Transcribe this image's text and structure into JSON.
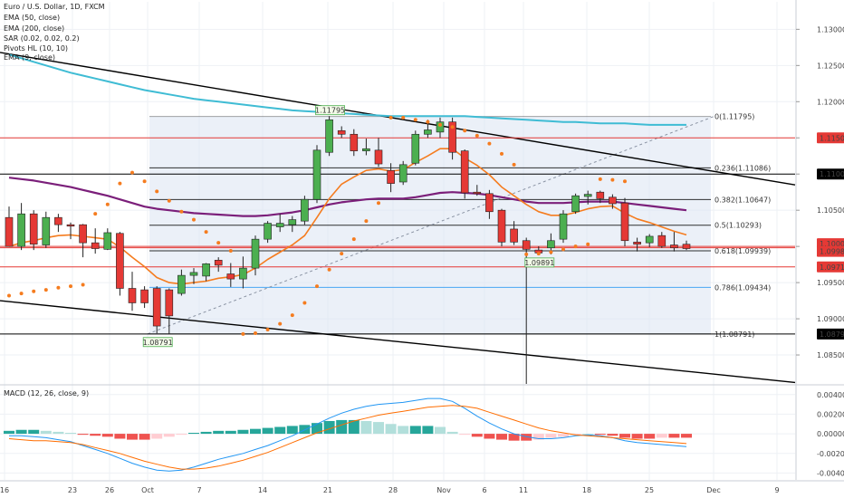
{
  "chart_data": [
    {
      "type": "candlestick",
      "symbol_title": "Euro / U.S. Dollar, 1D, FXCM",
      "indicators": [
        "EMA (50, close)",
        "EMA (200, close)",
        "SAR (0.02, 0.02, 0.2)",
        "Pivots HL (10, 10)",
        "EMA (9, close)"
      ],
      "y_axis": {
        "ticks": [
          "1.13000",
          "1.12500",
          "1.12000",
          "1.11500",
          "1.11000",
          "1.10500",
          "1.10000",
          "1.09500",
          "1.09000",
          "1.08500"
        ],
        "tick_values": [
          1.13,
          1.125,
          1.12,
          1.115,
          1.11,
          1.105,
          1.1,
          1.095,
          1.09,
          1.085
        ],
        "range": [
          1.081,
          1.1338
        ]
      },
      "x_axis": {
        "labels": [
          "16",
          "23",
          "26",
          "Oct",
          "7",
          "14",
          "21",
          "28",
          "Nov",
          "6",
          "11",
          "18",
          "25",
          "Dec",
          "9"
        ]
      },
      "candles": [
        {
          "o": 1.104,
          "h": 1.1055,
          "l": 1.1,
          "c": 1.1
        },
        {
          "o": 1.1,
          "h": 1.106,
          "l": 1.0995,
          "c": 1.1045
        },
        {
          "o": 1.1045,
          "h": 1.105,
          "l": 1.0995,
          "c": 1.1003
        },
        {
          "o": 1.1002,
          "h": 1.1048,
          "l": 1.0998,
          "c": 1.104
        },
        {
          "o": 1.104,
          "h": 1.1045,
          "l": 1.102,
          "c": 1.103
        },
        {
          "o": 1.103,
          "h": 1.1033,
          "l": 1.101,
          "c": 1.1028
        },
        {
          "o": 1.103,
          "h": 1.1031,
          "l": 1.0985,
          "c": 1.1005
        },
        {
          "o": 1.1005,
          "h": 1.1025,
          "l": 1.099,
          "c": 1.0997
        },
        {
          "o": 1.0996,
          "h": 1.1025,
          "l": 1.0995,
          "c": 1.1019
        },
        {
          "o": 1.1018,
          "h": 1.102,
          "l": 1.0932,
          "c": 1.0942
        },
        {
          "o": 1.0942,
          "h": 1.0965,
          "l": 1.0911,
          "c": 1.0922
        },
        {
          "o": 1.094,
          "h": 1.0945,
          "l": 1.0915,
          "c": 1.0922
        },
        {
          "o": 1.0942,
          "h": 1.0945,
          "l": 1.088,
          "c": 1.089
        },
        {
          "o": 1.094,
          "h": 1.0942,
          "l": 1.0879,
          "c": 1.0904
        },
        {
          "o": 1.0935,
          "h": 1.0968,
          "l": 1.0932,
          "c": 1.096
        },
        {
          "o": 1.096,
          "h": 1.097,
          "l": 1.0948,
          "c": 1.0964
        },
        {
          "o": 1.0959,
          "h": 1.0977,
          "l": 1.0952,
          "c": 1.0976
        },
        {
          "o": 1.0981,
          "h": 1.0985,
          "l": 1.0965,
          "c": 1.0974
        },
        {
          "o": 1.0962,
          "h": 1.0977,
          "l": 1.0944,
          "c": 1.0955
        },
        {
          "o": 1.0955,
          "h": 1.0986,
          "l": 1.0942,
          "c": 1.097
        },
        {
          "o": 1.097,
          "h": 1.1015,
          "l": 1.096,
          "c": 1.101
        },
        {
          "o": 1.101,
          "h": 1.1035,
          "l": 1.1005,
          "c": 1.1032
        },
        {
          "o": 1.1027,
          "h": 1.1045,
          "l": 1.102,
          "c": 1.1032
        },
        {
          "o": 1.103,
          "h": 1.1042,
          "l": 1.102,
          "c": 1.1037
        },
        {
          "o": 1.1035,
          "h": 1.107,
          "l": 1.103,
          "c": 1.1065
        },
        {
          "o": 1.1065,
          "h": 1.114,
          "l": 1.106,
          "c": 1.1133
        },
        {
          "o": 1.113,
          "h": 1.118,
          "l": 1.1125,
          "c": 1.1175
        },
        {
          "o": 1.116,
          "h": 1.1166,
          "l": 1.115,
          "c": 1.1155
        },
        {
          "o": 1.1155,
          "h": 1.1162,
          "l": 1.1125,
          "c": 1.1132
        },
        {
          "o": 1.1132,
          "h": 1.1149,
          "l": 1.1126,
          "c": 1.1135
        },
        {
          "o": 1.1133,
          "h": 1.115,
          "l": 1.111,
          "c": 1.1114
        },
        {
          "o": 1.1105,
          "h": 1.1115,
          "l": 1.1075,
          "c": 1.1087
        },
        {
          "o": 1.1089,
          "h": 1.1118,
          "l": 1.1085,
          "c": 1.1113
        },
        {
          "o": 1.1115,
          "h": 1.116,
          "l": 1.1112,
          "c": 1.1155
        },
        {
          "o": 1.1155,
          "h": 1.1175,
          "l": 1.115,
          "c": 1.1161
        },
        {
          "o": 1.1158,
          "h": 1.1178,
          "l": 1.115,
          "c": 1.1172
        },
        {
          "o": 1.1172,
          "h": 1.1178,
          "l": 1.112,
          "c": 1.113
        },
        {
          "o": 1.1132,
          "h": 1.1134,
          "l": 1.1066,
          "c": 1.1074
        },
        {
          "o": 1.1075,
          "h": 1.1085,
          "l": 1.107,
          "c": 1.1073
        },
        {
          "o": 1.1073,
          "h": 1.1078,
          "l": 1.1038,
          "c": 1.1048
        },
        {
          "o": 1.105,
          "h": 1.1052,
          "l": 1.1,
          "c": 1.1006
        },
        {
          "o": 1.1024,
          "h": 1.1035,
          "l": 1.1002,
          "c": 1.1006
        },
        {
          "o": 1.1008,
          "h": 1.1012,
          "l": 0.9994,
          "c": 1.0996
        },
        {
          "o": 1.0995,
          "h": 1.1,
          "l": 1.0989,
          "c": 1.0991
        },
        {
          "o": 1.0998,
          "h": 1.1018,
          "l": 1.0989,
          "c": 1.1008
        },
        {
          "o": 1.101,
          "h": 1.105,
          "l": 1.1005,
          "c": 1.1045
        },
        {
          "o": 1.1048,
          "h": 1.1073,
          "l": 1.1045,
          "c": 1.107
        },
        {
          "o": 1.1069,
          "h": 1.1077,
          "l": 1.1058,
          "c": 1.1072
        },
        {
          "o": 1.1075,
          "h": 1.1077,
          "l": 1.106,
          "c": 1.1066
        },
        {
          "o": 1.1068,
          "h": 1.1072,
          "l": 1.1052,
          "c": 1.1059
        },
        {
          "o": 1.106,
          "h": 1.1067,
          "l": 1.1,
          "c": 1.1008
        },
        {
          "o": 1.1006,
          "h": 1.1012,
          "l": 1.0993,
          "c": 1.1003
        },
        {
          "o": 1.1005,
          "h": 1.1017,
          "l": 1.0999,
          "c": 1.1014
        },
        {
          "o": 1.1015,
          "h": 1.102,
          "l": 1.0998,
          "c": 1.1
        },
        {
          "o": 1.1002,
          "h": 1.102,
          "l": 1.0993,
          "c": 1.0998
        },
        {
          "o": 1.1003,
          "h": 1.1008,
          "l": 1.0995,
          "c": 1.0997
        }
      ],
      "ema_9_orange": [
        1.1,
        1.1005,
        1.1008,
        1.1012,
        1.1015,
        1.1016,
        1.1014,
        1.1012,
        1.101,
        1.0999,
        1.0985,
        1.0972,
        1.0957,
        1.095,
        1.0948,
        1.095,
        1.0952,
        1.0956,
        1.0958,
        1.0961,
        1.097,
        1.0982,
        1.0992,
        1.1002,
        1.1015,
        1.104,
        1.1066,
        1.1086,
        1.1096,
        1.1105,
        1.1107,
        1.1104,
        1.1106,
        1.1116,
        1.1125,
        1.1135,
        1.1135,
        1.1122,
        1.1112,
        1.1099,
        1.1082,
        1.107,
        1.1058,
        1.1048,
        1.1043,
        1.1043,
        1.1047,
        1.1052,
        1.1055,
        1.1056,
        1.1046,
        1.1038,
        1.1033,
        1.1027,
        1.1021,
        1.1016
      ],
      "ema_50_purple": [
        1.1095,
        1.1093,
        1.1091,
        1.1088,
        1.1085,
        1.1082,
        1.1078,
        1.1074,
        1.107,
        1.1065,
        1.106,
        1.1055,
        1.1052,
        1.105,
        1.1048,
        1.1046,
        1.1045,
        1.1044,
        1.1043,
        1.1042,
        1.1042,
        1.1043,
        1.1045,
        1.1047,
        1.105,
        1.1054,
        1.1058,
        1.1061,
        1.1063,
        1.1065,
        1.1066,
        1.1066,
        1.1066,
        1.1068,
        1.1071,
        1.1074,
        1.1075,
        1.1074,
        1.1073,
        1.1071,
        1.1068,
        1.1065,
        1.1062,
        1.106,
        1.106,
        1.106,
        1.1061,
        1.1062,
        1.1062,
        1.1062,
        1.106,
        1.1058,
        1.1056,
        1.1054,
        1.1052,
        1.105
      ],
      "ema_200_cyan": [
        1.1265,
        1.126,
        1.1255,
        1.125,
        1.1245,
        1.124,
        1.1236,
        1.1232,
        1.1228,
        1.1224,
        1.122,
        1.1216,
        1.1213,
        1.121,
        1.1207,
        1.1204,
        1.1202,
        1.12,
        1.1198,
        1.1196,
        1.1194,
        1.1192,
        1.119,
        1.1188,
        1.1187,
        1.1186,
        1.1185,
        1.1184,
        1.1183,
        1.1182,
        1.1181,
        1.118,
        1.118,
        1.118,
        1.118,
        1.118,
        1.118,
        1.118,
        1.1179,
        1.1178,
        1.1177,
        1.1176,
        1.1175,
        1.1174,
        1.1173,
        1.1172,
        1.1172,
        1.1171,
        1.117,
        1.117,
        1.117,
        1.1169,
        1.1168,
        1.1168,
        1.1168,
        1.1168
      ],
      "sar_dots": [
        {
          "i": 0,
          "v": 1.0932
        },
        {
          "i": 1,
          "v": 1.0935
        },
        {
          "i": 2,
          "v": 1.0938
        },
        {
          "i": 3,
          "v": 1.094
        },
        {
          "i": 4,
          "v": 1.0943
        },
        {
          "i": 5,
          "v": 1.0945
        },
        {
          "i": 6,
          "v": 1.0947
        },
        {
          "i": 7,
          "v": 1.1045
        },
        {
          "i": 8,
          "v": 1.1058
        },
        {
          "i": 9,
          "v": 1.1087
        },
        {
          "i": 10,
          "v": 1.1102
        },
        {
          "i": 11,
          "v": 1.109
        },
        {
          "i": 12,
          "v": 1.1076
        },
        {
          "i": 13,
          "v": 1.1063
        },
        {
          "i": 14,
          "v": 1.1048
        },
        {
          "i": 15,
          "v": 1.1037
        },
        {
          "i": 16,
          "v": 1.102
        },
        {
          "i": 17,
          "v": 1.1005
        },
        {
          "i": 18,
          "v": 1.0994
        },
        {
          "i": 19,
          "v": 1.0879
        },
        {
          "i": 20,
          "v": 1.088
        },
        {
          "i": 21,
          "v": 1.0885
        },
        {
          "i": 22,
          "v": 1.0893
        },
        {
          "i": 23,
          "v": 1.0905
        },
        {
          "i": 24,
          "v": 1.0922
        },
        {
          "i": 25,
          "v": 1.0945
        },
        {
          "i": 26,
          "v": 1.0968
        },
        {
          "i": 27,
          "v": 1.099
        },
        {
          "i": 28,
          "v": 1.101
        },
        {
          "i": 29,
          "v": 1.1035
        },
        {
          "i": 30,
          "v": 1.106
        },
        {
          "i": 31,
          "v": 1.1178
        },
        {
          "i": 32,
          "v": 1.1178
        },
        {
          "i": 33,
          "v": 1.1175
        },
        {
          "i": 34,
          "v": 1.1172
        },
        {
          "i": 35,
          "v": 1.1168
        },
        {
          "i": 36,
          "v": 1.1165
        },
        {
          "i": 37,
          "v": 1.116
        },
        {
          "i": 38,
          "v": 1.1153
        },
        {
          "i": 39,
          "v": 1.1142
        },
        {
          "i": 40,
          "v": 1.1128
        },
        {
          "i": 41,
          "v": 1.1113
        },
        {
          "i": 42,
          "v": 1.0989
        },
        {
          "i": 43,
          "v": 1.099
        },
        {
          "i": 44,
          "v": 1.0992
        },
        {
          "i": 45,
          "v": 1.0996
        },
        {
          "i": 46,
          "v": 1.1
        },
        {
          "i": 47,
          "v": 1.1003
        },
        {
          "i": 48,
          "v": 1.1093
        },
        {
          "i": 49,
          "v": 1.1092
        },
        {
          "i": 50,
          "v": 1.109
        }
      ],
      "horizontal_levels": [
        {
          "value": 1.115,
          "label": "1.11500",
          "color": "#e53935"
        },
        {
          "value": 1.11,
          "label": "1.11000",
          "color": "#000000"
        },
        {
          "value": 1.1,
          "label": "1.10000",
          "color": "#e53935"
        },
        {
          "value": 1.09982,
          "label": "1.09982",
          "color": "#e53935"
        },
        {
          "value": 1.09717,
          "label": "1.09717",
          "color": "#e53935"
        },
        {
          "value": 1.0879,
          "label": "1.08790",
          "color": "#000000"
        }
      ],
      "fibonacci": [
        {
          "ratio": "0",
          "value": 1.11795,
          "label": "0(1.11795)"
        },
        {
          "ratio": "0.236",
          "value": 1.11086,
          "label": "0.236(1.11086)"
        },
        {
          "ratio": "0.382",
          "value": 1.10647,
          "label": "0.382(1.10647)"
        },
        {
          "ratio": "0.5",
          "value": 1.10293,
          "label": "0.5(1.10293)"
        },
        {
          "ratio": "0.618",
          "value": 1.09939,
          "label": "0.618(1.09939)"
        },
        {
          "ratio": "0.786",
          "value": 1.09434,
          "label": "0.786(1.09434)"
        },
        {
          "ratio": "1",
          "value": 1.08791,
          "label": "1(1.08791)"
        }
      ],
      "pivot_labels": [
        {
          "text": "1.11795",
          "i": 26,
          "value": 1.11795,
          "pos": "above"
        },
        {
          "text": "1.09891",
          "i": 43,
          "value": 1.09891,
          "pos": "below"
        },
        {
          "text": "1.08791",
          "i": 12,
          "value": 1.08791,
          "pos": "below"
        }
      ],
      "colors": {
        "up": "#4caf50",
        "down": "#e53935",
        "ema9": "#f57c1f",
        "ema50": "#7b1f7a",
        "ema200": "#3fbcd4",
        "sar": "#f57c1f",
        "fib": "#000000",
        "fib786": "#2196f3"
      }
    },
    {
      "type": "macd",
      "title": "MACD (12, 26, close, 9)",
      "y_axis": {
        "ticks": [
          "0.00400",
          "0.00200",
          "0.00000",
          "-0.00200",
          "-0.00400"
        ],
        "tick_values": [
          0.004,
          0.002,
          0.0,
          -0.002,
          -0.004
        ],
        "range": [
          -0.0047,
          0.0049
        ]
      },
      "histogram": [
        0.0003,
        0.0004,
        0.0004,
        0.0003,
        0.0002,
        0.0001,
        -0.0001,
        -0.0002,
        -0.0003,
        -0.0005,
        -0.0006,
        -0.0006,
        -0.0005,
        -0.0003,
        -0.0001,
        0.0001,
        0.0002,
        0.0003,
        0.0003,
        0.0004,
        0.0005,
        0.0006,
        0.0007,
        0.0008,
        0.0009,
        0.0011,
        0.0013,
        0.0014,
        0.0014,
        0.0013,
        0.0012,
        0.001,
        0.0008,
        0.0008,
        0.0008,
        0.0007,
        0.0002,
        -0.0001,
        -0.0003,
        -0.0005,
        -0.0006,
        -0.0007,
        -0.0007,
        -0.0006,
        -0.0004,
        -0.0003,
        -0.0001,
        0.0,
        -0.0001,
        -0.0002,
        -0.0004,
        -0.0005,
        -0.0005,
        -0.0004,
        -0.0004,
        -0.0004
      ],
      "macd_line_blue": [
        -0.0002,
        -0.0002,
        -0.0003,
        -0.0004,
        -0.0006,
        -0.0008,
        -0.0012,
        -0.0016,
        -0.002,
        -0.0025,
        -0.003,
        -0.0034,
        -0.0037,
        -0.0038,
        -0.0037,
        -0.0034,
        -0.003,
        -0.0026,
        -0.0023,
        -0.002,
        -0.0016,
        -0.0012,
        -0.0007,
        -0.0002,
        0.0004,
        0.001,
        0.0016,
        0.0021,
        0.0025,
        0.0028,
        0.003,
        0.0031,
        0.0032,
        0.0034,
        0.0036,
        0.0036,
        0.0033,
        0.0026,
        0.0018,
        0.0011,
        0.0005,
        0.0,
        -0.0003,
        -0.0005,
        -0.0005,
        -0.0004,
        -0.0002,
        -0.0001,
        -0.0002,
        -0.0004,
        -0.0007,
        -0.0009,
        -0.001,
        -0.0011,
        -0.0012,
        -0.0013
      ],
      "signal_line_orange": [
        -0.0005,
        -0.0006,
        -0.0007,
        -0.0007,
        -0.0008,
        -0.0009,
        -0.0011,
        -0.0014,
        -0.0017,
        -0.002,
        -0.0024,
        -0.0028,
        -0.0031,
        -0.0034,
        -0.0036,
        -0.0036,
        -0.0035,
        -0.0033,
        -0.003,
        -0.0027,
        -0.0023,
        -0.0019,
        -0.0014,
        -0.0009,
        -0.0004,
        0.0001,
        0.0005,
        0.0009,
        0.0013,
        0.0016,
        0.0019,
        0.0021,
        0.0023,
        0.0025,
        0.0027,
        0.0028,
        0.0029,
        0.0028,
        0.0026,
        0.0022,
        0.0018,
        0.0014,
        0.001,
        0.0006,
        0.0003,
        0.0001,
        -0.0001,
        -0.0002,
        -0.0003,
        -0.0004,
        -0.0005,
        -0.0006,
        -0.0007,
        -0.0008,
        -0.0009,
        -0.001
      ]
    }
  ]
}
